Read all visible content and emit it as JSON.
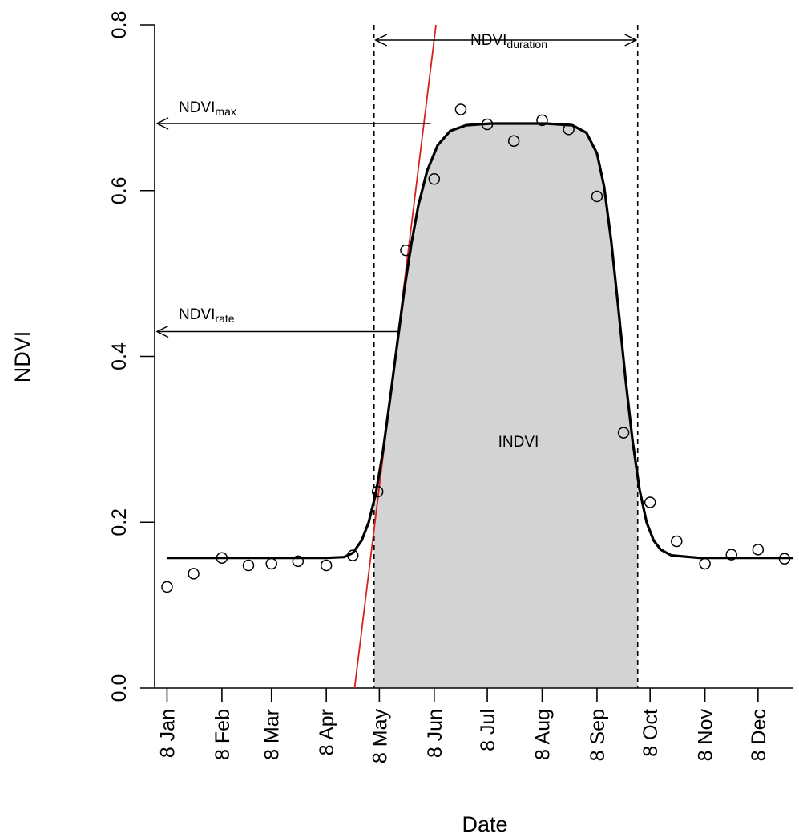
{
  "chart_data": {
    "type": "scatter",
    "title": "",
    "xlabel": "Date",
    "ylabel": "NDVI",
    "xlim": [
      "1999-01-01",
      "1999-12-28"
    ],
    "ylim": [
      0,
      0.8
    ],
    "grid": false,
    "x_ticks": [
      "1999-01-08",
      "1999-02-08",
      "1999-03-08",
      "1999-04-08",
      "1999-05-08",
      "1999-06-08",
      "1999-07-08",
      "1999-08-08",
      "1999-09-08",
      "1999-10-08",
      "1999-11-08",
      "1999-12-08"
    ],
    "x_tick_labels": [
      "8 Jan",
      "8 Feb",
      "8 Mar",
      "8 Apr",
      "8 May",
      "8 Jun",
      "8 Jul",
      "8 Aug",
      "8 Sep",
      "8 Oct",
      "8 Nov",
      "8 Dec"
    ],
    "y_ticks": [
      0.0,
      0.2,
      0.4,
      0.6,
      0.8
    ],
    "y_tick_labels": [
      "0.0",
      "0.2",
      "0.4",
      "0.6",
      "0.8"
    ],
    "observations": {
      "x": [
        "1999-01-08",
        "1999-01-23",
        "1999-02-08",
        "1999-02-23",
        "1999-03-08",
        "1999-03-23",
        "1999-04-08",
        "1999-04-23",
        "1999-05-07",
        "1999-05-23",
        "1999-06-08",
        "1999-06-23",
        "1999-07-08",
        "1999-07-23",
        "1999-08-08",
        "1999-08-23",
        "1999-09-08",
        "1999-09-23",
        "1999-10-08",
        "1999-10-23",
        "1999-11-08",
        "1999-11-23",
        "1999-12-08",
        "1999-12-23"
      ],
      "y": [
        0.122,
        0.138,
        0.157,
        0.148,
        0.15,
        0.153,
        0.148,
        0.16,
        0.237,
        0.528,
        0.614,
        0.698,
        0.68,
        0.66,
        0.685,
        0.674,
        0.593,
        0.308,
        0.224,
        0.177,
        0.15,
        0.161,
        0.167,
        0.156
      ]
    },
    "fitted_curve": {
      "x": [
        "1999-01-08",
        "1999-04-08",
        "1999-04-18",
        "1999-04-23",
        "1999-04-28",
        "1999-05-02",
        "1999-05-06",
        "1999-05-10",
        "1999-05-14",
        "1999-05-18",
        "1999-05-22",
        "1999-05-26",
        "1999-05-30",
        "1999-06-04",
        "1999-06-10",
        "1999-06-17",
        "1999-06-26",
        "1999-07-10",
        "1999-08-10",
        "1999-08-25",
        "1999-09-02",
        "1999-09-08",
        "1999-09-12",
        "1999-09-16",
        "1999-09-20",
        "1999-09-24",
        "1999-09-28",
        "1999-10-02",
        "1999-10-06",
        "1999-10-10",
        "1999-10-14",
        "1999-10-20",
        "1999-11-05",
        "1999-12-28"
      ],
      "y": [
        0.157,
        0.157,
        0.158,
        0.163,
        0.178,
        0.2,
        0.235,
        0.285,
        0.348,
        0.414,
        0.479,
        0.535,
        0.582,
        0.624,
        0.655,
        0.672,
        0.679,
        0.681,
        0.681,
        0.679,
        0.67,
        0.645,
        0.605,
        0.54,
        0.46,
        0.375,
        0.3,
        0.24,
        0.2,
        0.178,
        0.167,
        0.16,
        0.157,
        0.157
      ]
    },
    "tangent_line": {
      "color": "#d62020",
      "x": [
        "1999-04-24",
        "1999-06-09"
      ],
      "y": [
        0.0,
        0.8
      ]
    },
    "season_bounds": [
      "1999-05-05",
      "1999-10-01"
    ],
    "ndvi_max": 0.681,
    "ndvi_rate": 0.43,
    "shade_color": "#d3d3d3",
    "annotations": {
      "integral_label": "INDVI",
      "max_label": {
        "main": "NDVI",
        "sub": "max"
      },
      "rate_label": {
        "main": "NDVI",
        "sub": "rate"
      },
      "duration_label": {
        "main": "NDVI",
        "sub": "duration"
      }
    }
  }
}
